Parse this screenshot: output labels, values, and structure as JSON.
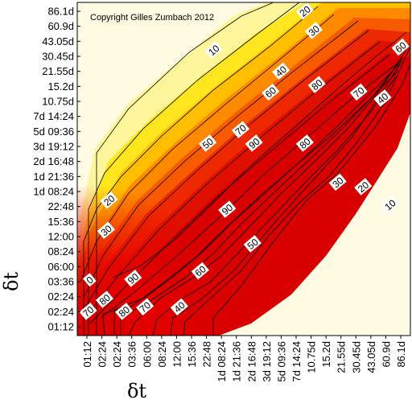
{
  "chart_data": {
    "type": "heatmap",
    "copyright": "Copyright Gilles Zumbach 2012",
    "xlabel": "δt",
    "ylabel": "δt",
    "ticks": [
      "01:12",
      "02:24",
      "02:24",
      "03:36",
      "06:00",
      "08:24",
      "12:00",
      "15:36",
      "22:48",
      "1d 08:24",
      "1d 21:36",
      "2d 16:48",
      "3d 19:12",
      "5d 09:36",
      "7d 14:24",
      "10.75d",
      "15.2d",
      "21.55d",
      "30.45d",
      "43.05d",
      "60.9d",
      "86.1d"
    ],
    "contour_levels": [
      10,
      20,
      30,
      40,
      50,
      60,
      70,
      80,
      90
    ],
    "contour_labels": [
      {
        "text": "20",
        "pos": [
          14.6,
          21.0
        ]
      },
      {
        "text": "30",
        "pos": [
          15.2,
          19.7
        ]
      },
      {
        "text": "10",
        "pos": [
          8.5,
          18.4
        ]
      },
      {
        "text": "40",
        "pos": [
          13.0,
          17.0
        ]
      },
      {
        "text": "60",
        "pos": [
          21.0,
          18.6
        ]
      },
      {
        "text": "80",
        "pos": [
          15.4,
          16.1
        ]
      },
      {
        "text": "60",
        "pos": [
          12.3,
          15.6
        ]
      },
      {
        "text": "70",
        "pos": [
          18.2,
          15.6
        ]
      },
      {
        "text": "40",
        "pos": [
          19.8,
          15.2
        ]
      },
      {
        "text": "70",
        "pos": [
          10.3,
          13.1
        ]
      },
      {
        "text": "50",
        "pos": [
          8.1,
          12.2
        ]
      },
      {
        "text": "90",
        "pos": [
          11.2,
          12.2
        ]
      },
      {
        "text": "80",
        "pos": [
          14.6,
          12.2
        ]
      },
      {
        "text": "30",
        "pos": [
          16.8,
          9.6
        ]
      },
      {
        "text": "20",
        "pos": [
          18.5,
          9.3
        ]
      },
      {
        "text": "10",
        "pos": [
          20.3,
          8.1
        ]
      },
      {
        "text": "20",
        "pos": [
          1.5,
          8.4
        ]
      },
      {
        "text": "30",
        "pos": [
          1.3,
          6.4
        ]
      },
      {
        "text": "90",
        "pos": [
          9.4,
          7.8
        ]
      },
      {
        "text": "50",
        "pos": [
          11.1,
          5.5
        ]
      },
      {
        "text": "60",
        "pos": [
          7.6,
          3.7
        ]
      },
      {
        "text": "90",
        "pos": [
          3.1,
          3.2
        ]
      },
      {
        "text": "0",
        "pos": [
          0.2,
          3.1
        ]
      },
      {
        "text": "80",
        "pos": [
          1.2,
          1.8
        ]
      },
      {
        "text": "70",
        "pos": [
          0.1,
          1.0
        ]
      },
      {
        "text": "80",
        "pos": [
          2.5,
          1.0
        ]
      },
      {
        "text": "70",
        "pos": [
          3.9,
          1.3
        ]
      },
      {
        "text": "40",
        "pos": [
          6.2,
          1.3
        ]
      }
    ]
  }
}
